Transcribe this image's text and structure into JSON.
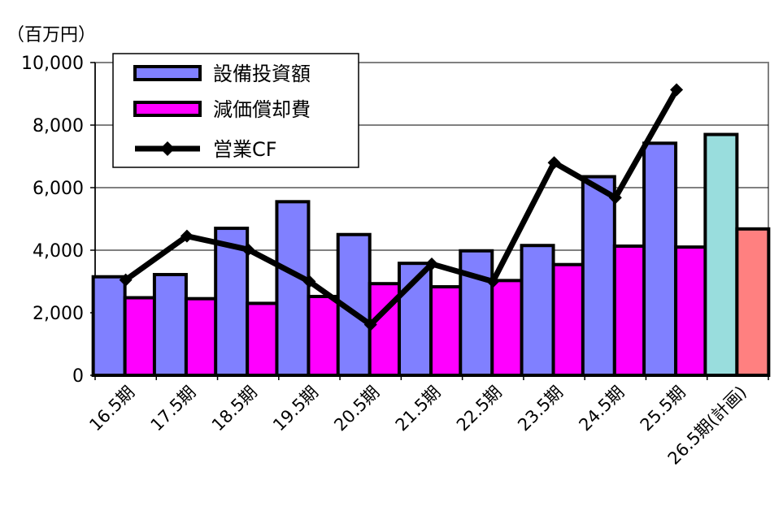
{
  "chart_data": {
    "type": "bar",
    "unit_label": "（百万円）",
    "categories": [
      "16.5期",
      "17.5期",
      "18.5期",
      "19.5期",
      "20.5期",
      "21.5期",
      "22.5期",
      "23.5期",
      "24.5期",
      "25.5期",
      "26.5期(計画)"
    ],
    "ylim": [
      0,
      10000
    ],
    "yticks": [
      0,
      2000,
      4000,
      6000,
      8000,
      10000
    ],
    "ytick_labels": [
      "0",
      "2,000",
      "4,000",
      "6,000",
      "8,000",
      "10,000"
    ],
    "grid": true,
    "legend_position": "top-left",
    "series": [
      {
        "name": "設備投資額",
        "kind": "bar",
        "color": "#8080ff",
        "values": [
          3150,
          3220,
          4700,
          5550,
          4500,
          3580,
          3980,
          4150,
          6350,
          7420,
          7700
        ]
      },
      {
        "name": "減価償却費",
        "kind": "bar",
        "color": "#ff00ff",
        "values": [
          2480,
          2450,
          2300,
          2520,
          2930,
          2830,
          3030,
          3540,
          4130,
          4100,
          4680
        ]
      },
      {
        "name": "営業CF",
        "kind": "line",
        "color": "#000000",
        "values": [
          3050,
          4450,
          4020,
          3000,
          1620,
          3560,
          3000,
          6800,
          5680,
          9130,
          null
        ]
      }
    ],
    "plan_bar_colors": {
      "capex": "#99dddd",
      "depreciation": "#ff8080"
    }
  }
}
